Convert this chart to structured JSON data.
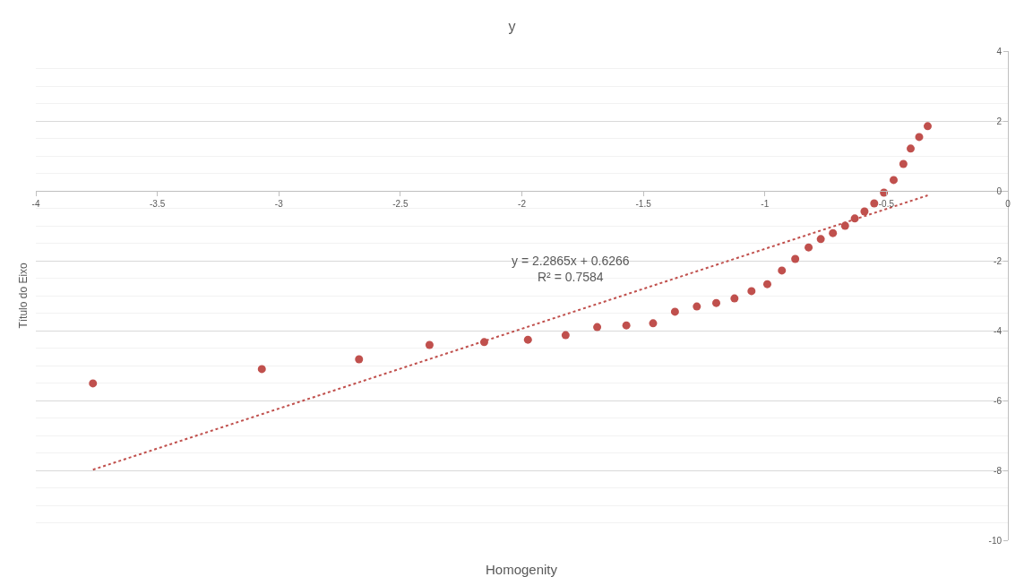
{
  "chart_data": {
    "type": "scatter",
    "title": "y",
    "xlabel": "Homogenity",
    "ylabel": "Título do Eixo",
    "xlim": [
      -4,
      0
    ],
    "xticks": [
      -4,
      -3.5,
      -3,
      -2.5,
      -2,
      -1.5,
      -1,
      -0.5,
      0
    ],
    "ylim": [
      -10,
      4
    ],
    "yticks": [
      -10,
      -8,
      -6,
      -4,
      -2,
      0,
      2,
      4
    ],
    "grid": "y",
    "marker": "circle",
    "series": [
      {
        "color": "#c0504d",
        "x": [
          -3.765,
          -3.07,
          -2.67,
          -2.38,
          -2.155,
          -1.975,
          -1.82,
          -1.69,
          -1.57,
          -1.46,
          -1.37,
          -1.28,
          -1.2,
          -1.125,
          -1.055,
          -0.99,
          -0.93,
          -0.875,
          -0.82,
          -0.77,
          -0.72,
          -0.67,
          -0.63,
          -0.59,
          -0.55,
          -0.51,
          -0.47,
          -0.43,
          -0.4,
          -0.365,
          -0.33
        ],
        "values": [
          -5.51,
          -5.1,
          -4.82,
          -4.41,
          -4.33,
          -4.26,
          -4.13,
          -3.9,
          -3.85,
          -3.79,
          -3.46,
          -3.31,
          -3.21,
          -3.08,
          -2.87,
          -2.67,
          -2.28,
          -1.95,
          -1.62,
          -1.38,
          -1.21,
          -1.0,
          -0.79,
          -0.59,
          -0.36,
          -0.05,
          0.31,
          0.77,
          1.21,
          1.54,
          1.85
        ]
      },
      {
        "type": "line",
        "color": "#c0504d",
        "line_style": "dotted",
        "marker": "none",
        "x": [
          -3.765,
          -0.33
        ],
        "values": [
          -7.98,
          -0.13
        ]
      }
    ],
    "annotations": [
      "y = 2.2865x + 0.6266\nR² = 0.7584"
    ]
  }
}
